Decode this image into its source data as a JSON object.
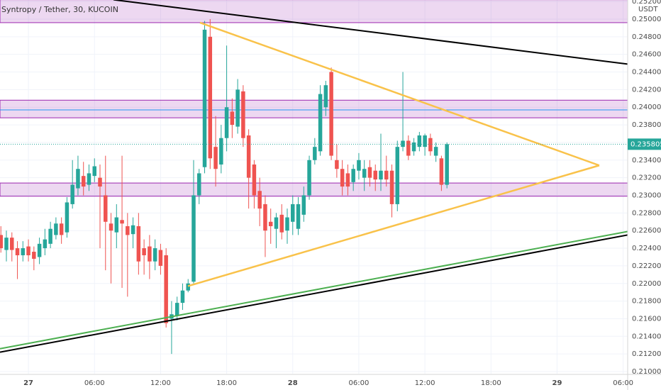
{
  "chart_data": {
    "type": "candlestick",
    "title": "Syntropy / Tether, 30, KUCOIN",
    "currency_label": "USDT",
    "last_price": 0.235805,
    "up_color": "#26a69a",
    "down_color": "#ef5350",
    "x": [
      -2.5,
      -2,
      -1.5,
      -1,
      -0.5,
      0,
      0.5,
      1,
      1.5,
      2,
      2.5,
      3,
      3.5,
      4,
      4.5,
      5,
      5.5,
      6,
      6.5,
      7,
      7.5,
      8,
      8.5,
      9,
      9.5,
      10,
      10.5,
      11,
      11.5,
      12,
      12.5,
      13,
      13.5,
      14,
      14.5,
      15,
      15.5,
      16,
      16.5,
      17,
      17.5,
      18,
      18.5,
      19,
      19.5,
      20,
      20.5,
      21,
      21.5,
      22,
      22.5,
      23,
      23.5,
      24,
      24.5,
      25,
      25.5,
      26,
      26.5,
      27,
      27.5,
      28,
      28.5,
      29,
      29.5,
      30,
      30.5,
      31,
      31.5,
      32,
      32.5,
      33,
      33.5,
      34,
      34.5,
      35,
      35.5,
      36,
      36.5,
      37,
      37.5,
      38
    ],
    "open": [
      0.2255,
      0.2238,
      0.2252,
      0.224,
      0.2232,
      0.2242,
      0.2236,
      0.223,
      0.224,
      0.2245,
      0.2255,
      0.2268,
      0.2258,
      0.229,
      0.2308,
      0.2322,
      0.2312,
      0.2322,
      0.232,
      0.23,
      0.2268,
      0.2258,
      0.2272,
      0.2265,
      0.2256,
      0.2265,
      0.224,
      0.2242,
      0.2225,
      0.2238,
      0.2232,
      0.216,
      0.2163,
      0.2178,
      0.2192,
      0.2202,
      0.23,
      0.2332,
      0.248,
      0.2355,
      0.2335,
      0.2365,
      0.2395,
      0.2378,
      0.2418,
      0.2368,
      0.2335,
      0.2305,
      0.229,
      0.227,
      0.2262,
      0.2278,
      0.226,
      0.227,
      0.2262,
      0.2278,
      0.23,
      0.234,
      0.235,
      0.24,
      0.244,
      0.234,
      0.233,
      0.2325,
      0.2315,
      0.2328,
      0.232,
      0.2332,
      0.2328,
      0.2318,
      0.2328,
      0.2328,
      0.229,
      0.2355,
      0.2362,
      0.235,
      0.2355,
      0.2355,
      0.2365,
      0.2345,
      0.2342,
      0.2312
    ],
    "high": [
      0.2265,
      0.226,
      0.2258,
      0.2248,
      0.2248,
      0.225,
      0.2242,
      0.2252,
      0.2262,
      0.227,
      0.2275,
      0.2275,
      0.2298,
      0.234,
      0.2345,
      0.2338,
      0.2335,
      0.2342,
      0.2335,
      0.2345,
      0.228,
      0.229,
      0.2345,
      0.228,
      0.2275,
      0.228,
      0.225,
      0.2255,
      0.225,
      0.2245,
      0.224,
      0.218,
      0.2185,
      0.22,
      0.2205,
      0.234,
      0.233,
      0.2498,
      0.25,
      0.239,
      0.238,
      0.247,
      0.241,
      0.2432,
      0.2425,
      0.2375,
      0.234,
      0.232,
      0.23,
      0.2285,
      0.228,
      0.229,
      0.2285,
      0.23,
      0.2298,
      0.231,
      0.2345,
      0.2365,
      0.2425,
      0.243,
      0.2445,
      0.2358,
      0.234,
      0.2335,
      0.2335,
      0.2348,
      0.234,
      0.234,
      0.2335,
      0.237,
      0.2345,
      0.2335,
      0.2362,
      0.244,
      0.2368,
      0.2365,
      0.2372,
      0.237,
      0.237,
      0.236,
      0.2345,
      0.236
    ],
    "low": [
      0.2235,
      0.2225,
      0.2225,
      0.2205,
      0.2225,
      0.2225,
      0.2215,
      0.2222,
      0.2232,
      0.224,
      0.225,
      0.2245,
      0.2252,
      0.2285,
      0.23,
      0.23,
      0.2305,
      0.2315,
      0.224,
      0.2215,
      0.22,
      0.224,
      0.2195,
      0.2185,
      0.224,
      0.221,
      0.221,
      0.2205,
      0.2215,
      0.221,
      0.215,
      0.212,
      0.2158,
      0.217,
      0.219,
      0.22,
      0.229,
      0.2325,
      0.233,
      0.231,
      0.2325,
      0.235,
      0.2365,
      0.237,
      0.2355,
      0.2285,
      0.2285,
      0.2265,
      0.223,
      0.2245,
      0.224,
      0.225,
      0.2245,
      0.2255,
      0.2255,
      0.227,
      0.2295,
      0.2335,
      0.2345,
      0.239,
      0.234,
      0.232,
      0.23,
      0.23,
      0.2305,
      0.2318,
      0.2305,
      0.231,
      0.2305,
      0.2305,
      0.231,
      0.2275,
      0.2282,
      0.235,
      0.234,
      0.2345,
      0.235,
      0.2345,
      0.2345,
      0.2338,
      0.2305,
      0.2308
    ],
    "close": [
      0.224,
      0.2252,
      0.2238,
      0.2232,
      0.224,
      0.2232,
      0.2228,
      0.2245,
      0.225,
      0.2262,
      0.2268,
      0.2255,
      0.2292,
      0.2312,
      0.233,
      0.231,
      0.2325,
      0.2333,
      0.231,
      0.227,
      0.226,
      0.2275,
      0.2268,
      0.2255,
      0.2266,
      0.2225,
      0.2232,
      0.2225,
      0.224,
      0.222,
      0.2155,
      0.2165,
      0.2178,
      0.2192,
      0.22,
      0.23,
      0.2325,
      0.2488,
      0.2342,
      0.233,
      0.2365,
      0.24,
      0.238,
      0.242,
      0.2365,
      0.232,
      0.23,
      0.2285,
      0.226,
      0.2265,
      0.2275,
      0.2258,
      0.2275,
      0.229,
      0.229,
      0.23,
      0.234,
      0.2355,
      0.2415,
      0.2425,
      0.2345,
      0.233,
      0.231,
      0.231,
      0.233,
      0.234,
      0.233,
      0.232,
      0.2318,
      0.2328,
      0.2318,
      0.229,
      0.2355,
      0.2362,
      0.2345,
      0.236,
      0.2368,
      0.2368,
      0.235,
      0.2355,
      0.2312,
      0.235805
    ],
    "zones": [
      {
        "from": 0.2496,
        "to": 0.2522,
        "color": "#9c27b0"
      },
      {
        "from": 0.2388,
        "to": 0.2408,
        "color": "#9c27b0"
      },
      {
        "from": 0.2299,
        "to": 0.2314,
        "color": "#9c27b0"
      }
    ],
    "hlines": [
      {
        "value": 0.2397,
        "color": "#2196f3"
      }
    ],
    "trendlines": [
      {
        "x": [
          7.73,
          54.41
        ],
        "y": [
          0.2522,
          0.2449
        ],
        "color": "#000000",
        "width": 2
      },
      {
        "x": [
          15.58,
          51.83
        ],
        "y": [
          0.2496,
          0.2334
        ],
        "color": "#f9c24a",
        "width": 2.5
      },
      {
        "x": [
          14.49,
          51.83
        ],
        "y": [
          0.2197,
          0.2334
        ],
        "color": "#f9c24a",
        "width": 2.5
      },
      {
        "x": [
          -2.58,
          54.41
        ],
        "y": [
          0.2126,
          0.2259
        ],
        "color": "#4caf50",
        "width": 2
      },
      {
        "x": [
          -2.58,
          54.41
        ],
        "y": [
          0.2122,
          0.2255
        ],
        "color": "#000000",
        "width": 2
      }
    ],
    "xlim": [
      -2.58,
      54.41
    ],
    "ylim": [
      0.20976,
      0.25217
    ],
    "xticks": [
      {
        "value": 0,
        "label": "27"
      },
      {
        "value": 6,
        "label": "06:00"
      },
      {
        "value": 12,
        "label": "12:00"
      },
      {
        "value": 18,
        "label": "18:00"
      },
      {
        "value": 24,
        "label": "28"
      },
      {
        "value": 30,
        "label": "06:00"
      },
      {
        "value": 36,
        "label": "12:00"
      },
      {
        "value": 42,
        "label": "18:00"
      },
      {
        "value": 48,
        "label": "29"
      },
      {
        "value": 54,
        "label": "06:00"
      }
    ],
    "yticks": [
      {
        "value": 0.21,
        "label": "0.210000"
      },
      {
        "value": 0.212,
        "label": "0.212000"
      },
      {
        "value": 0.214,
        "label": "0.214000"
      },
      {
        "value": 0.216,
        "label": "0.216000"
      },
      {
        "value": 0.218,
        "label": "0.218000"
      },
      {
        "value": 0.22,
        "label": "0.220000"
      },
      {
        "value": 0.222,
        "label": "0.222000"
      },
      {
        "value": 0.224,
        "label": "0.224000"
      },
      {
        "value": 0.226,
        "label": "0.226000"
      },
      {
        "value": 0.228,
        "label": "0.228000"
      },
      {
        "value": 0.23,
        "label": "0.230000"
      },
      {
        "value": 0.232,
        "label": "0.232000"
      },
      {
        "value": 0.234,
        "label": "0.234000"
      },
      {
        "value": 0.236,
        "label": "0.236000"
      },
      {
        "value": 0.238,
        "label": "0.238000"
      },
      {
        "value": 0.24,
        "label": "0.240000"
      },
      {
        "value": 0.242,
        "label": "0.242000"
      },
      {
        "value": 0.244,
        "label": "0.244000"
      },
      {
        "value": 0.246,
        "label": "0.246000"
      },
      {
        "value": 0.248,
        "label": "0.248000"
      },
      {
        "value": 0.25,
        "label": "0.250000"
      },
      {
        "value": 0.252,
        "label": "0.252000"
      }
    ],
    "grid": true
  }
}
